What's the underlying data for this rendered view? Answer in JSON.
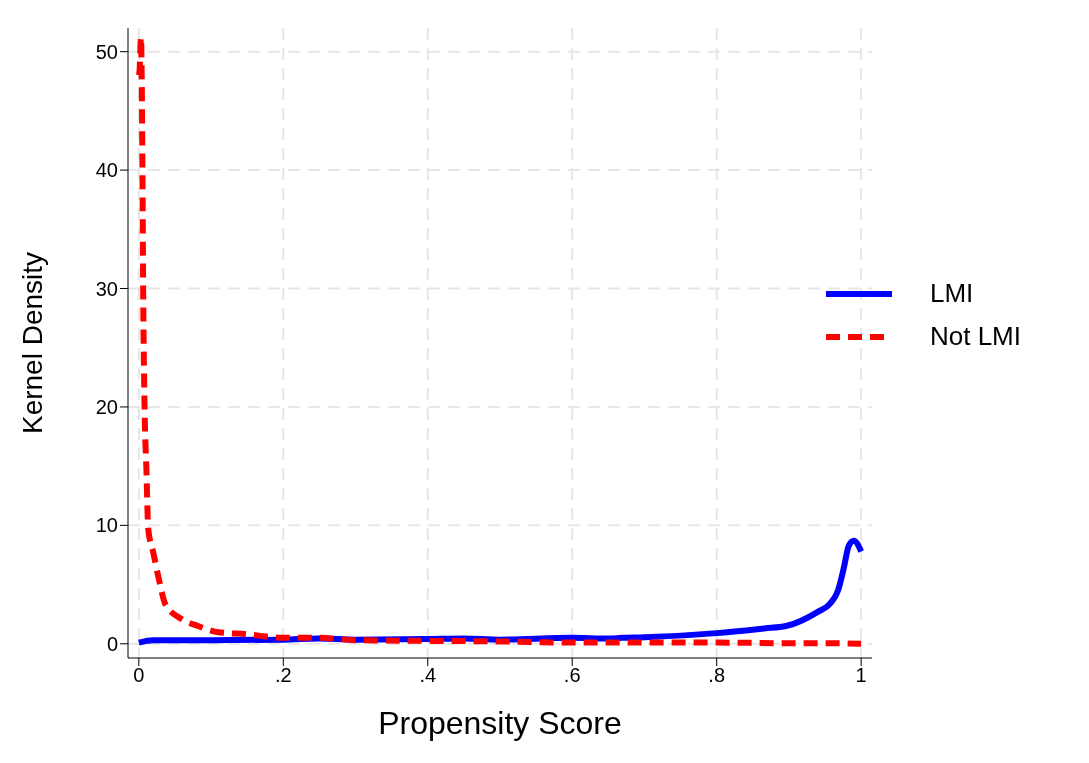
{
  "chart_data": {
    "type": "line",
    "xlabel": "Propensity Score",
    "ylabel": "Kernel Density",
    "xlim": [
      -0.015,
      1.015
    ],
    "ylim": [
      -1.2,
      52
    ],
    "xticks": [
      0,
      {
        "value": 0.2,
        "label": ".2"
      },
      {
        "value": 0.4,
        "label": ".4"
      },
      {
        "value": 0.6,
        "label": ".6"
      },
      {
        "value": 0.8,
        "label": ".8"
      },
      1
    ],
    "yticks": [
      0,
      10,
      20,
      30,
      40,
      50
    ],
    "grid": true,
    "legend": "right",
    "marker": "none",
    "series": [
      {
        "name": "LMI",
        "color": "#0000ff",
        "line_style": "solid",
        "x": [
          0,
          0.02,
          0.05,
          0.1,
          0.2,
          0.25,
          0.3,
          0.4,
          0.45,
          0.5,
          0.6,
          0.65,
          0.669,
          0.7,
          0.8,
          0.866,
          0.896,
          0.94,
          0.957,
          0.968,
          0.976,
          0.983,
          0.99,
          1.0
        ],
        "values": [
          0.1,
          0.3,
          0.3,
          0.3,
          0.35,
          0.45,
          0.35,
          0.4,
          0.45,
          0.35,
          0.5,
          0.45,
          0.5,
          0.55,
          0.9,
          1.3,
          1.5,
          2.7,
          3.4,
          4.5,
          6.4,
          8.3,
          8.7,
          7.8
        ]
      },
      {
        "name": "Not LMI",
        "color": "#ff0000",
        "line_style": "dashed",
        "x": [
          0,
          0.001,
          0.003,
          0.005,
          0.006,
          0.008,
          0.0105,
          0.013,
          0.02,
          0.028,
          0.037,
          0.059,
          0.082,
          0.108,
          0.15,
          0.2,
          0.25,
          0.3,
          0.4,
          0.5,
          0.6,
          0.7,
          0.8,
          0.9,
          0.95,
          1.0
        ],
        "values": [
          48,
          48.4,
          51.2,
          40,
          30,
          19.8,
          14.7,
          9.7,
          7.7,
          5.4,
          3.3,
          2.1,
          1.5,
          1.0,
          0.8,
          0.5,
          0.5,
          0.3,
          0.25,
          0.2,
          0.1,
          0.1,
          0.1,
          0.05,
          0.05,
          0
        ]
      }
    ]
  }
}
